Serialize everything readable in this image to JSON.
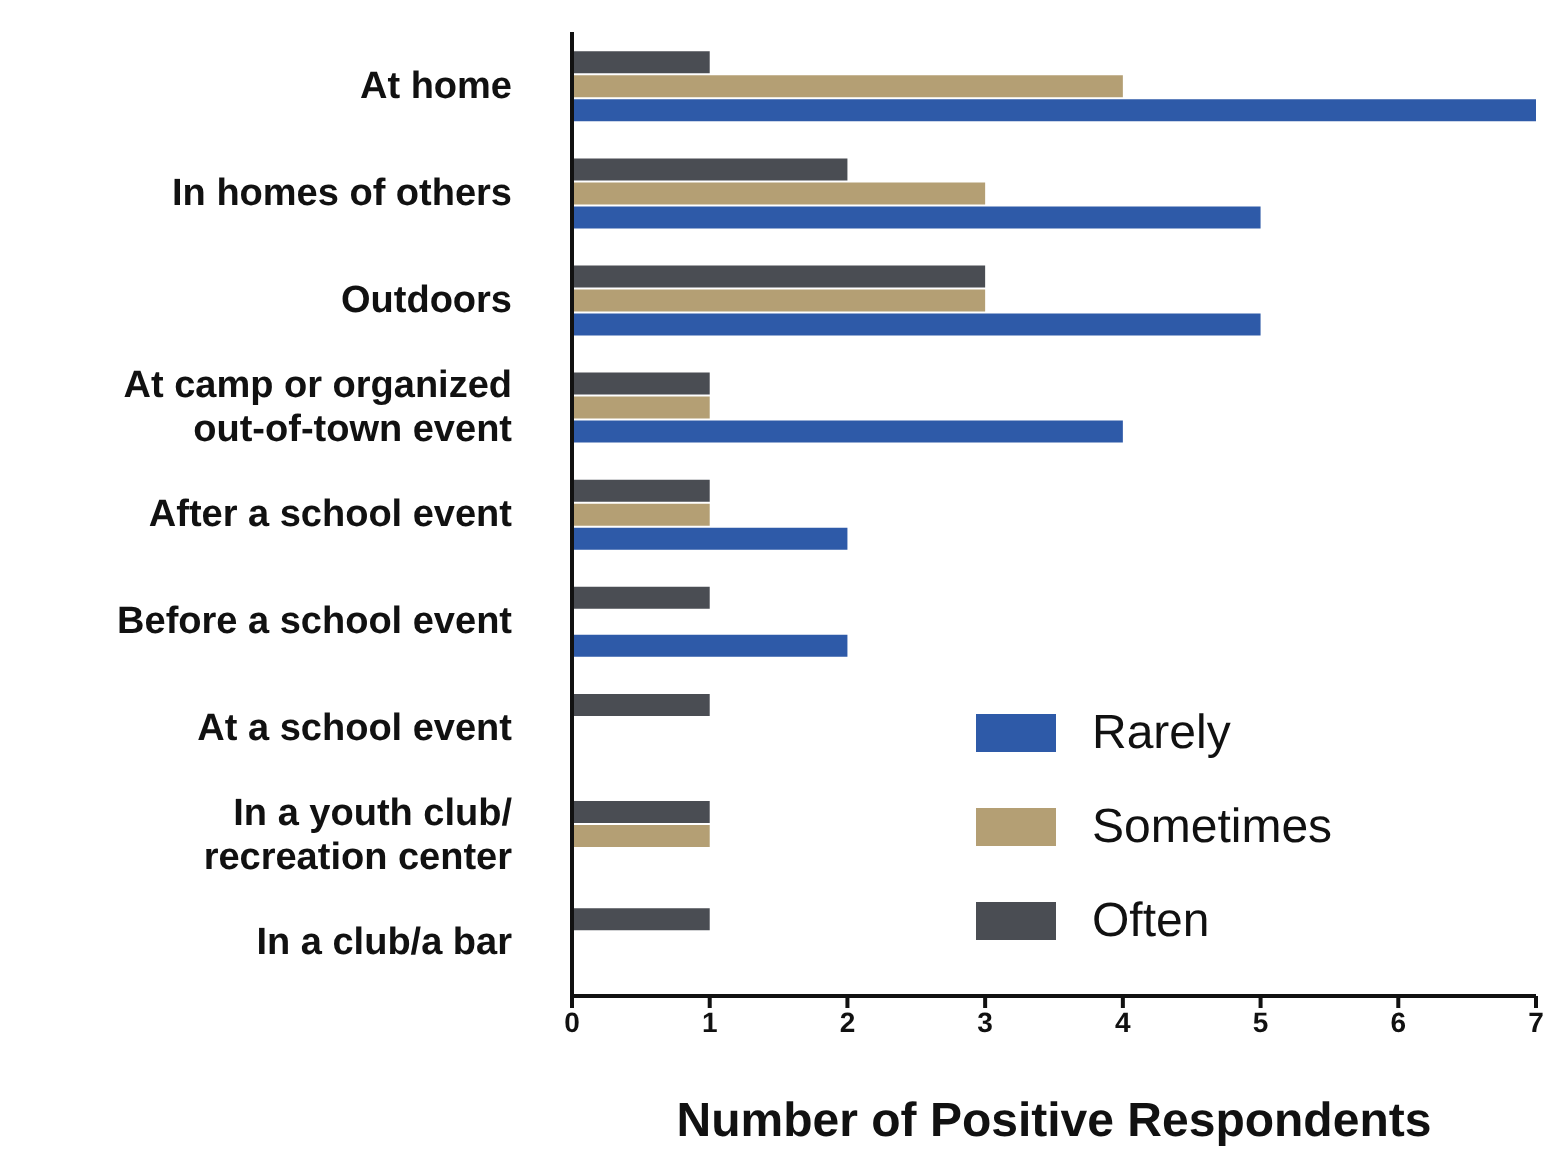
{
  "chart_data": {
    "type": "bar",
    "orientation": "horizontal",
    "xlabel": "Number of Positive Respondents",
    "categories": [
      "At home",
      "In homes of others",
      "Outdoors",
      "At camp or organized\nout-of-town event",
      "After a school event",
      "Before a school event",
      "At a school event",
      "In a youth club/\nrecreation center",
      "In a club/a bar"
    ],
    "series": [
      {
        "name": "Rarely",
        "color": "#2e5aa8",
        "values": [
          7,
          5,
          5,
          4,
          2,
          2,
          null,
          null,
          null
        ]
      },
      {
        "name": "Sometimes",
        "color": "#b49f74",
        "values": [
          4,
          3,
          3,
          1,
          1,
          null,
          null,
          1,
          null
        ]
      },
      {
        "name": "Often",
        "color": "#4a4d53",
        "values": [
          1,
          2,
          3,
          1,
          1,
          1,
          1,
          1,
          1
        ]
      }
    ],
    "xlim": [
      0,
      7
    ],
    "xticks": [
      0,
      1,
      2,
      3,
      4,
      5,
      6,
      7
    ],
    "grid": false,
    "legend": "bottom right"
  }
}
